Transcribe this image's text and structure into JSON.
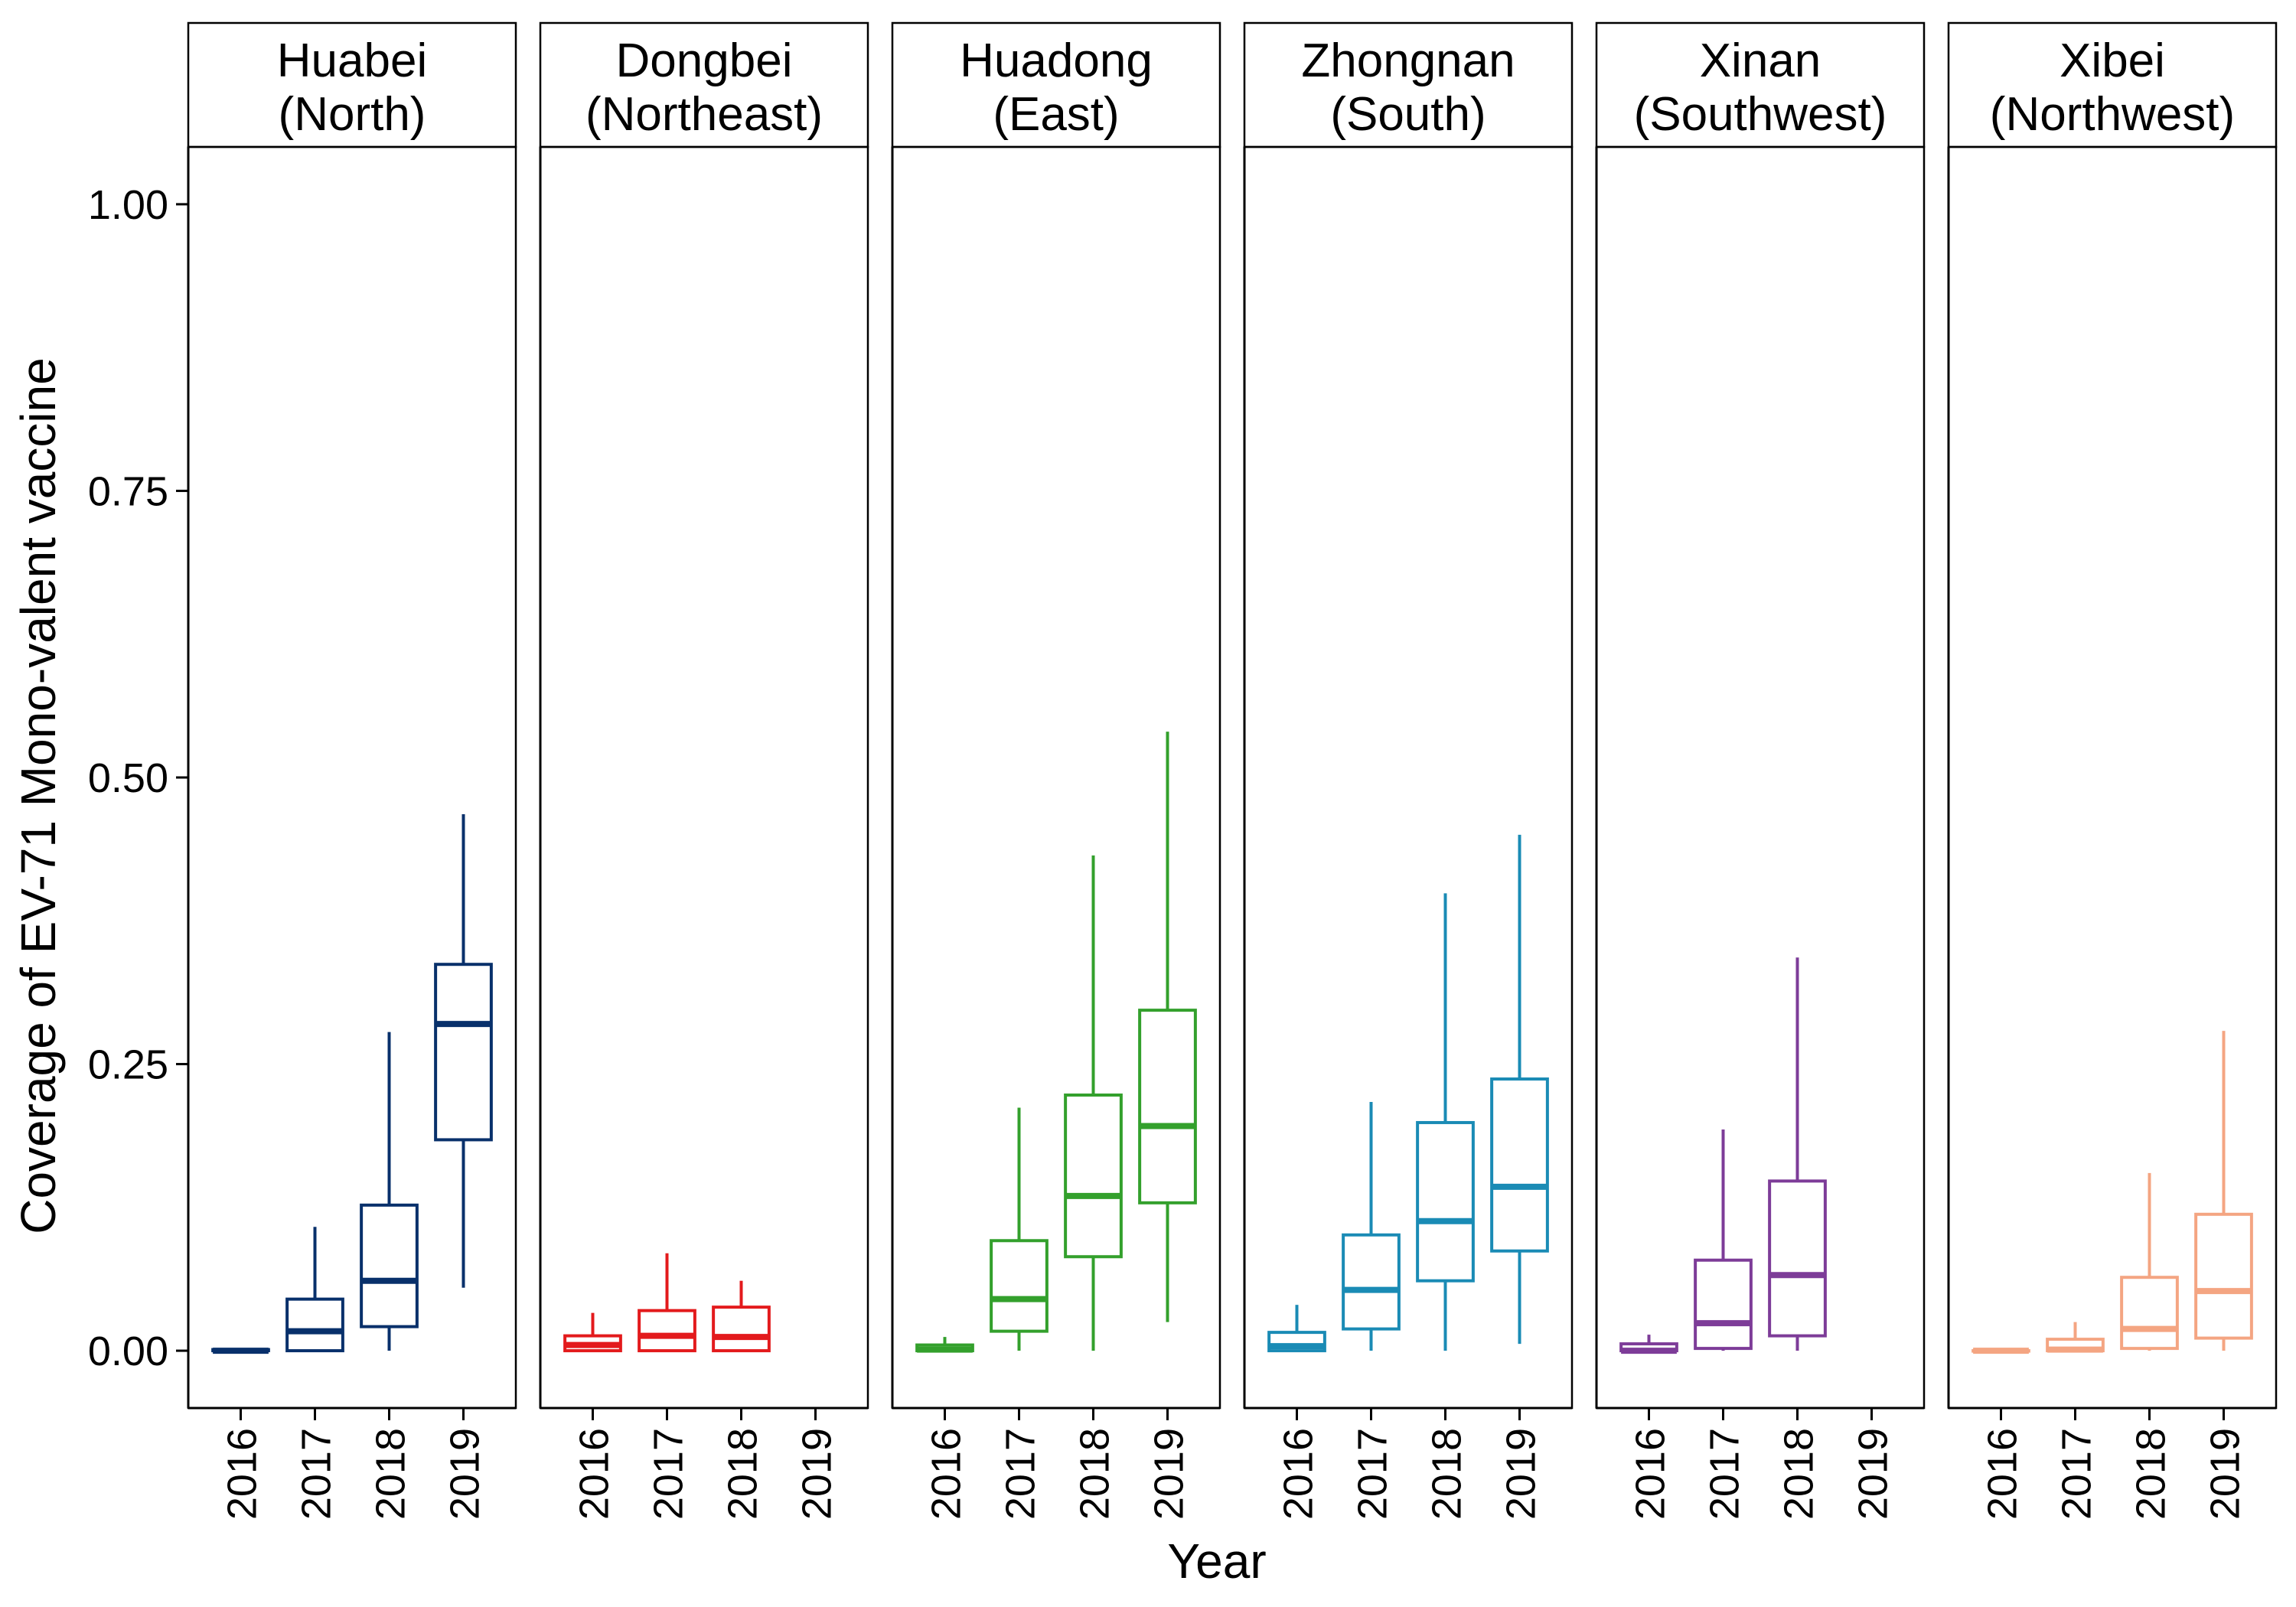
{
  "chart_data": {
    "type": "boxplot",
    "facets": [
      {
        "name": "Huabei\n(North)",
        "color": "#08306B",
        "boxes": [
          {
            "x": "2016",
            "min": 0.0,
            "q1": 0.0,
            "median": 0.0,
            "q3": 0.001,
            "max": 0.002
          },
          {
            "x": "2017",
            "min": 0.0,
            "q1": 0.0,
            "median": 0.017,
            "q3": 0.045,
            "max": 0.108
          },
          {
            "x": "2018",
            "min": 0.0,
            "q1": 0.021,
            "median": 0.061,
            "q3": 0.127,
            "max": 0.278
          },
          {
            "x": "2019",
            "min": 0.055,
            "q1": 0.184,
            "median": 0.285,
            "q3": 0.337,
            "max": 0.468
          }
        ]
      },
      {
        "name": "Dongbei\n(Northeast)",
        "color": "#E31A1C",
        "boxes": [
          {
            "x": "2016",
            "min": 0.0,
            "q1": 0.0,
            "median": 0.005,
            "q3": 0.013,
            "max": 0.033
          },
          {
            "x": "2017",
            "min": 0.0,
            "q1": 0.0,
            "median": 0.013,
            "q3": 0.035,
            "max": 0.085
          },
          {
            "x": "2018",
            "min": 0.0,
            "q1": 0.0,
            "median": 0.012,
            "q3": 0.038,
            "max": 0.061
          }
        ]
      },
      {
        "name": "Huadong\n(East)",
        "color": "#33A02C",
        "boxes": [
          {
            "x": "2016",
            "min": 0.0,
            "q1": 0.0,
            "median": 0.001,
            "q3": 0.005,
            "max": 0.012
          },
          {
            "x": "2017",
            "min": 0.0,
            "q1": 0.017,
            "median": 0.045,
            "q3": 0.096,
            "max": 0.212
          },
          {
            "x": "2018",
            "min": 0.0,
            "q1": 0.082,
            "median": 0.135,
            "q3": 0.223,
            "max": 0.432
          },
          {
            "x": "2019",
            "min": 0.025,
            "q1": 0.129,
            "median": 0.196,
            "q3": 0.297,
            "max": 0.54
          }
        ]
      },
      {
        "name": "Zhongnan\n(South)",
        "color": "#1A8BB5",
        "boxes": [
          {
            "x": "2016",
            "min": 0.0,
            "q1": 0.0,
            "median": 0.004,
            "q3": 0.016,
            "max": 0.04
          },
          {
            "x": "2017",
            "min": 0.0,
            "q1": 0.019,
            "median": 0.053,
            "q3": 0.101,
            "max": 0.217
          },
          {
            "x": "2018",
            "min": 0.0,
            "q1": 0.061,
            "median": 0.113,
            "q3": 0.199,
            "max": 0.399
          },
          {
            "x": "2019",
            "min": 0.006,
            "q1": 0.087,
            "median": 0.143,
            "q3": 0.237,
            "max": 0.45
          }
        ]
      },
      {
        "name": "Xinan\n(Southwest)",
        "color": "#7D3C98",
        "boxes": [
          {
            "x": "2016",
            "min": 0.0,
            "q1": 0.0,
            "median": 0.0,
            "q3": 0.006,
            "max": 0.014
          },
          {
            "x": "2017",
            "min": 0.0,
            "q1": 0.002,
            "median": 0.024,
            "q3": 0.079,
            "max": 0.193
          },
          {
            "x": "2018",
            "min": 0.0,
            "q1": 0.013,
            "median": 0.066,
            "q3": 0.148,
            "max": 0.343
          }
        ]
      },
      {
        "name": "Xibei\n(Northwest)",
        "color": "#F4A582",
        "boxes": [
          {
            "x": "2016",
            "min": 0.0,
            "q1": 0.0,
            "median": 0.0,
            "q3": 0.0,
            "max": 0.001
          },
          {
            "x": "2017",
            "min": 0.0,
            "q1": 0.0,
            "median": 0.001,
            "q3": 0.01,
            "max": 0.025
          },
          {
            "x": "2018",
            "min": 0.0,
            "q1": 0.002,
            "median": 0.019,
            "q3": 0.064,
            "max": 0.155
          },
          {
            "x": "2019",
            "min": 0.0,
            "q1": 0.011,
            "median": 0.052,
            "q3": 0.119,
            "max": 0.279
          }
        ]
      }
    ],
    "categories": [
      "2016",
      "2017",
      "2018",
      "2019"
    ],
    "xlabel": "Year",
    "ylabel": "Coverage of EV-71 Mono-valent vaccine",
    "ylim": [
      -0.05,
      1.05
    ],
    "yticks": [
      0.0,
      0.25,
      0.5,
      0.75,
      1.0
    ],
    "ytick_labels": [
      "0.00",
      "0.25",
      "0.50",
      "0.75",
      "1.00"
    ],
    "grid": false,
    "legend": "none"
  }
}
